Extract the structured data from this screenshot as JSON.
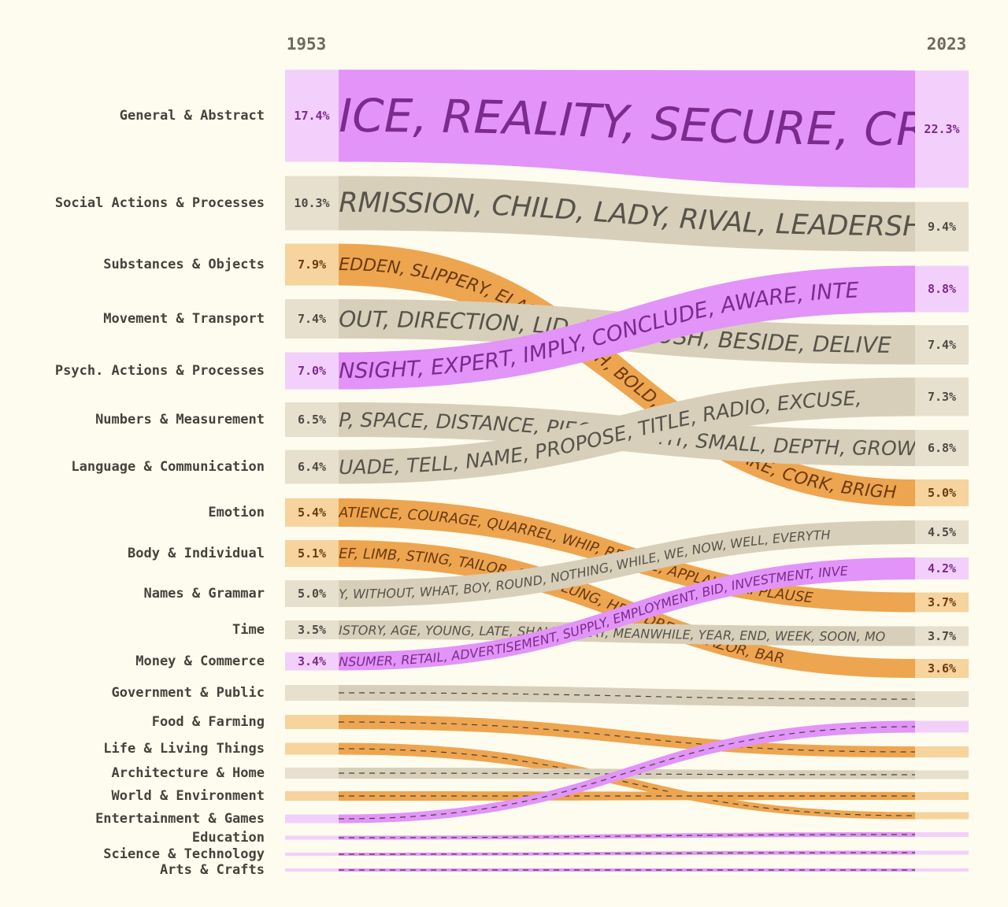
{
  "chart_data": {
    "type": "sankey",
    "title": "",
    "x_start_label": "1953",
    "x_end_label": "2023",
    "colors": {
      "purple_flow": "#e294f8",
      "purple_cap": "#f3d0fc",
      "purple_text": "#7c2a8c",
      "orange_flow": "#eea550",
      "orange_cap": "#f7d39d",
      "orange_text": "#6a3a10",
      "grey_flow": "#d8cfba",
      "grey_cap": "#e7e0cf",
      "grey_text": "#57534a",
      "dash": "#45433c"
    },
    "categories": [
      {
        "name": "General & Abstract",
        "color": "purple",
        "y1953": 147,
        "y2023": 164,
        "h1953": 117,
        "h2023": 149,
        "pct1953": "17.4%",
        "pct2023": "22.3%",
        "words": "ICE, REALITY, SECURE, CRU",
        "font": 58
      },
      {
        "name": "Social Actions & Processes",
        "color": "grey",
        "y1953": 258,
        "y2023": 288,
        "h1953": 69,
        "h2023": 63,
        "pct1953": "10.3%",
        "pct2023": "9.4%",
        "words": "RMISSION, CHILD, LADY, RIVAL, LEADERSH",
        "font": 35
      },
      {
        "name": "Substances & Objects",
        "color": "orange",
        "y1953": 336,
        "y2023": 626,
        "h1953": 53,
        "h2023": 34,
        "pct1953": "7.9%",
        "pct2023": "5.0%",
        "words": "EDDEN, SLIPPERY, ELASTIC, ARCH, BOLD, BARREL, BARE, CORK, BRIGH",
        "font": 22
      },
      {
        "name": "Movement & Transport",
        "color": "grey",
        "y1953": 405,
        "y2023": 438,
        "h1953": 50,
        "h2023": 50,
        "pct1953": "7.4%",
        "pct2023": "7.4%",
        "words": "OUT, DIRECTION, LID, RUN, PUSH, BESIDE, DELIVE",
        "font": 28
      },
      {
        "name": "Psych. Actions & Processes",
        "color": "purple",
        "y1953": 471,
        "y2023": 367,
        "h1953": 47,
        "h2023": 59,
        "pct1953": "7.0%",
        "pct2023": "8.8%",
        "words": "NSIGHT, EXPERT, IMPLY, CONCLUDE, AWARE, INTE",
        "font": 27
      },
      {
        "name": "Numbers & Measurement",
        "color": "grey",
        "y1953": 533,
        "y2023": 569,
        "h1953": 44,
        "h2023": 46,
        "pct1953": "6.5%",
        "pct2023": "6.8%",
        "words": "P, SPACE, DISTANCE, PIECE, SLIGHT, SMALL, DEPTH, GROWT",
        "font": 25
      },
      {
        "name": "Language & Communication",
        "color": "grey",
        "y1953": 593,
        "y2023": 504,
        "h1953": 43,
        "h2023": 49,
        "pct1953": "6.4%",
        "pct2023": "7.3%",
        "words": "UADE, TELL, NAME, PROPOSE, TITLE, RADIO, EXCUSE,",
        "font": 25
      },
      {
        "name": "Emotion",
        "color": "orange",
        "y1953": 651,
        "y2023": 765,
        "h1953": 36,
        "h2023": 25,
        "pct1953": "5.4%",
        "pct2023": "3.7%",
        "words": "ATIENCE, COURAGE, QUARREL, WHIP, REJOICE, APPLAUD, APPLAUSE",
        "font": 18
      },
      {
        "name": "Body & Individual",
        "color": "orange",
        "y1953": 703,
        "y2023": 849,
        "h1953": 34,
        "h2023": 24,
        "pct1953": "5.1%",
        "pct2023": "3.6%",
        "words": "EF, LIMB, STING, TAILOR, CURE, LUNG, HEADDRESS, RAZOR, BAR",
        "font": 18
      },
      {
        "name": "Names & Grammar",
        "color": "grey",
        "y1953": 754,
        "y2023": 676,
        "h1953": 34,
        "h2023": 30,
        "pct1953": "5.0%",
        "pct2023": "4.5%",
        "words": "Y, WITHOUT, WHAT, BOY, ROUND, NOTHING, WHILE, WE, NOW, WELL, EVERYTH",
        "font": 16
      },
      {
        "name": "Time",
        "color": "grey",
        "y1953": 800,
        "y2023": 808,
        "h1953": 24,
        "h2023": 25,
        "pct1953": "3.5%",
        "pct2023": "3.7%",
        "words": "ISTORY, AGE, YOUNG, LATE, SHALL, DELAY, MEANWHILE, YEAR, END, WEEK, SOON, MO",
        "font": 16
      },
      {
        "name": "Money & Commerce",
        "color": "purple",
        "y1953": 840,
        "y2023": 722,
        "h1953": 23,
        "h2023": 28,
        "pct1953": "3.4%",
        "pct2023": "4.2%",
        "words": "NSUMER, RETAIL, ADVERTISEMENT, SUPPLY, EMPLOYMENT, BID, INVESTMENT, INVE",
        "font": 16
      },
      {
        "name": "Government & Public",
        "color": "grey",
        "y1953": 880,
        "y2023": 888,
        "h1953": 20,
        "h2023": 20,
        "pct1953": "",
        "pct2023": "",
        "words": "",
        "font": 0
      },
      {
        "name": "Food & Farming",
        "color": "orange",
        "y1953": 917,
        "y2023": 955,
        "h1953": 18,
        "h2023": 14,
        "pct1953": "",
        "pct2023": "",
        "words": "",
        "font": 0
      },
      {
        "name": "Life & Living Things",
        "color": "orange",
        "y1953": 951,
        "y2023": 1036,
        "h1953": 15,
        "h2023": 9,
        "pct1953": "",
        "pct2023": "",
        "words": "",
        "font": 0
      },
      {
        "name": "Architecture & Home",
        "color": "grey",
        "y1953": 982,
        "y2023": 984,
        "h1953": 14,
        "h2023": 11,
        "pct1953": "",
        "pct2023": "",
        "words": "",
        "font": 0
      },
      {
        "name": "World & Environment",
        "color": "orange",
        "y1953": 1011,
        "y2023": 1011,
        "h1953": 12,
        "h2023": 10,
        "pct1953": "",
        "pct2023": "",
        "words": "",
        "font": 0
      },
      {
        "name": "Entertainment & Games",
        "color": "purple",
        "y1953": 1040,
        "y2023": 923,
        "h1953": 11,
        "h2023": 15,
        "pct1953": "",
        "pct2023": "",
        "words": "",
        "font": 0
      },
      {
        "name": "Education",
        "color": "purple",
        "y1953": 1064,
        "y2023": 1060,
        "h1953": 5,
        "h2023": 6,
        "pct1953": "",
        "pct2023": "",
        "words": "",
        "font": 0
      },
      {
        "name": "Science & Technology",
        "color": "purple",
        "y1953": 1085,
        "y2023": 1083,
        "h1953": 4,
        "h2023": 5,
        "pct1953": "",
        "pct2023": "",
        "words": "",
        "font": 0
      },
      {
        "name": "Arts & Crafts",
        "color": "purple",
        "y1953": 1105,
        "y2023": 1105,
        "h1953": 4,
        "h2023": 4,
        "pct1953": "",
        "pct2023": "",
        "words": "",
        "font": 0
      }
    ]
  }
}
